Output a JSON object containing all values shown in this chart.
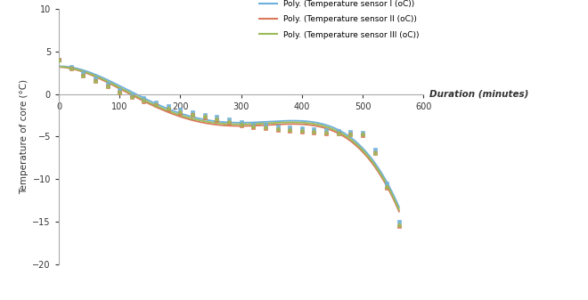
{
  "xlim": [
    0,
    600
  ],
  "ylim": [
    -20,
    10
  ],
  "yticks": [
    -20,
    -15,
    -10,
    -5,
    0,
    5,
    10
  ],
  "xticks": [
    0,
    100,
    200,
    300,
    400,
    500,
    600
  ],
  "xlabel": "Duration (minutes)",
  "ylabel": "Temperature of core (°C)",
  "line_colors": [
    "#6EB0DC",
    "#D9785A",
    "#9BBB59"
  ],
  "legend_labels": [
    "Poly. (Temperature sensor I (oC))",
    "Poly. (Temperature sensor II (oC))",
    "Poly. (Temperature sensor III (oC))"
  ],
  "data_x": [
    0,
    20,
    40,
    60,
    80,
    100,
    120,
    140,
    160,
    180,
    200,
    220,
    240,
    260,
    280,
    300,
    320,
    340,
    360,
    380,
    400,
    420,
    440,
    460,
    480,
    500,
    520,
    540,
    560
  ],
  "data_s1": [
    4.0,
    3.2,
    2.5,
    1.8,
    1.2,
    0.5,
    -0.1,
    -0.5,
    -1.0,
    -1.4,
    -1.8,
    -2.1,
    -2.4,
    -2.7,
    -3.0,
    -3.3,
    -3.5,
    -3.6,
    -3.8,
    -3.9,
    -4.0,
    -4.1,
    -4.2,
    -4.3,
    -4.4,
    -4.5,
    -6.5,
    -10.5,
    -15.0
  ],
  "data_s2": [
    4.0,
    3.0,
    2.2,
    1.5,
    0.9,
    0.2,
    -0.4,
    -0.9,
    -1.3,
    -1.8,
    -2.2,
    -2.5,
    -2.8,
    -3.1,
    -3.4,
    -3.7,
    -3.9,
    -4.0,
    -4.2,
    -4.3,
    -4.4,
    -4.5,
    -4.6,
    -4.7,
    -4.8,
    -4.9,
    -7.0,
    -11.0,
    -15.5
  ],
  "data_s3": [
    4.0,
    3.1,
    2.3,
    1.6,
    1.0,
    0.3,
    -0.3,
    -0.7,
    -1.2,
    -1.6,
    -2.0,
    -2.3,
    -2.6,
    -2.9,
    -3.2,
    -3.5,
    -3.7,
    -3.8,
    -4.0,
    -4.1,
    -4.2,
    -4.3,
    -4.4,
    -4.5,
    -4.6,
    -4.7,
    -6.8,
    -10.8,
    -15.3
  ],
  "background_color": "#FFFFFF"
}
